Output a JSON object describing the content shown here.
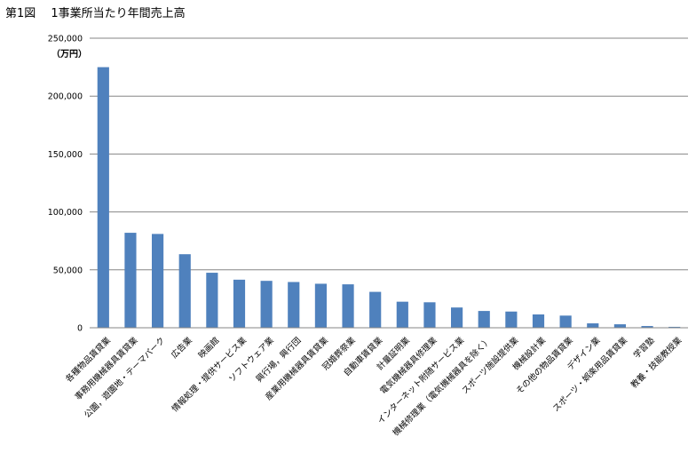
{
  "figure": {
    "title": "第1図　 1事業所当たり年間売上高",
    "unit": "（万円）"
  },
  "chart_data": {
    "type": "bar",
    "title": "第1図　 1事業所当たり年間売上高",
    "ylabel": "（万円）",
    "xlabel": "",
    "ylim": [
      0,
      250000
    ],
    "yticks": [
      0,
      50000,
      100000,
      150000,
      200000,
      250000
    ],
    "ytick_labels": [
      "0",
      "50,000",
      "100,000",
      "150,000",
      "200,000",
      "250,000"
    ],
    "grid": true,
    "legend": "none",
    "bar_color": "#4f81bd",
    "categories": [
      "各種物品賃貸業",
      "事務用機械器具賃貸業",
      "公園，遊園地・テーマパーク",
      "広告業",
      "映画館",
      "情報処理・提供サービス業",
      "ソフトウェア業",
      "興行場，興行団",
      "産業用機械器具賃貸業",
      "冠婚葬祭業",
      "自動車賃貸業",
      "計量証明業",
      "電気機械器具修理業",
      "インターネット附随サービス業",
      "機械修理業（電気機械器具を除く）",
      "スポーツ施設提供業",
      "機械設計業",
      "その他の物品賃貸業",
      "デザイン業",
      "スポーツ・娯楽用品賃貸業",
      "学習塾",
      "教養・技能教授業"
    ],
    "values": [
      225000,
      82000,
      81000,
      63500,
      47500,
      41500,
      40500,
      39500,
      38000,
      37500,
      31000,
      22500,
      22000,
      17500,
      14500,
      14000,
      11500,
      10500,
      3800,
      3000,
      1500,
      800
    ]
  }
}
